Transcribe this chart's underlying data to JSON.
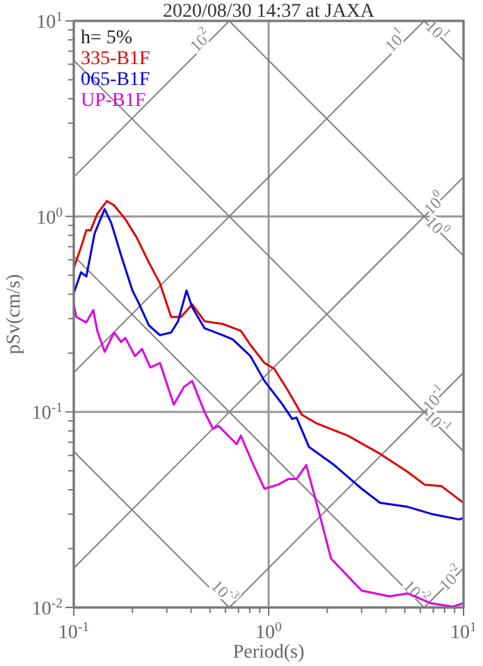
{
  "chart_data": {
    "type": "line",
    "title": "2020/08/30 14:37 at JAXA",
    "xlabel": "Period(s)",
    "ylabel": "pSv(cm/s)",
    "log": "xy",
    "grid": true,
    "legend": "top left",
    "marker": "none",
    "line_style": "solid",
    "xlim": [
      0.1,
      10
    ],
    "ylim": [
      0.01,
      10
    ],
    "xticks": [
      {
        "value": 0.1,
        "label": "10$^{-1}$"
      },
      {
        "value": 0.2,
        "label": null
      },
      {
        "value": 0.3,
        "label": null
      },
      {
        "value": 0.4,
        "label": null
      },
      {
        "value": 0.5,
        "label": null
      },
      {
        "value": 0.6,
        "label": null
      },
      {
        "value": 0.7,
        "label": null
      },
      {
        "value": 0.8,
        "label": null
      },
      {
        "value": 0.9,
        "label": null
      },
      {
        "value": 1,
        "label": "10$^{0}$"
      },
      {
        "value": 2,
        "label": null
      },
      {
        "value": 3,
        "label": null
      },
      {
        "value": 4,
        "label": null
      },
      {
        "value": 5,
        "label": null
      },
      {
        "value": 6,
        "label": null
      },
      {
        "value": 7,
        "label": null
      },
      {
        "value": 8,
        "label": null
      },
      {
        "value": 9,
        "label": null
      },
      {
        "value": 10,
        "label": "10$^{1}$"
      }
    ],
    "yticks": [
      {
        "value": 0.01,
        "label": "10$^{-2}$"
      },
      {
        "value": 0.02,
        "label": null
      },
      {
        "value": 0.03,
        "label": null
      },
      {
        "value": 0.04,
        "label": null
      },
      {
        "value": 0.05,
        "label": null
      },
      {
        "value": 0.06,
        "label": null
      },
      {
        "value": 0.07,
        "label": null
      },
      {
        "value": 0.08,
        "label": null
      },
      {
        "value": 0.09,
        "label": null
      },
      {
        "value": 0.1,
        "label": "10$^{-1}$"
      },
      {
        "value": 0.2,
        "label": null
      },
      {
        "value": 0.3,
        "label": null
      },
      {
        "value": 0.4,
        "label": null
      },
      {
        "value": 0.5,
        "label": null
      },
      {
        "value": 0.6,
        "label": null
      },
      {
        "value": 0.7,
        "label": null
      },
      {
        "value": 0.8,
        "label": null
      },
      {
        "value": 0.9,
        "label": null
      },
      {
        "value": 1,
        "label": "10$^{0}$"
      },
      {
        "value": 2,
        "label": null
      },
      {
        "value": 3,
        "label": null
      },
      {
        "value": 4,
        "label": null
      },
      {
        "value": 5,
        "label": null
      },
      {
        "value": 6,
        "label": null
      },
      {
        "value": 7,
        "label": null
      },
      {
        "value": 8,
        "label": null
      },
      {
        "value": 9,
        "label": null
      },
      {
        "value": 10,
        "label": "10$^{1}$"
      }
    ],
    "annotations": [
      "h= 5%",
      {
        "text": "10$^{2}$",
        "x": 0.454,
        "y": 7.81
      },
      {
        "text": "10$^{1}$",
        "x": 4.54,
        "y": 7.81
      },
      {
        "text": "10$^{1}$",
        "x": 7.2,
        "y": 8.73
      },
      {
        "text": "10$^{0}$",
        "x": 7.2,
        "y": 1.146
      },
      {
        "text": "10$^{0}$",
        "x": 7.2,
        "y": 0.873
      },
      {
        "text": "10$^{-1}$",
        "x": 7.2,
        "y": 0.1146
      },
      {
        "text": "10$^{-1}$",
        "x": 7.2,
        "y": 0.0873
      },
      {
        "text": "10$^{-2}$",
        "x": 8.77,
        "y": 0.0139
      },
      {
        "text": "10$^{-2}$",
        "x": 5.62,
        "y": 0.0118
      },
      {
        "text": "10$^{-3}$",
        "x": 0.581,
        "y": 0.0118
      }
    ],
    "series": [
      {
        "type": "line",
        "color": "#808080",
        "x": [
          0.1,
          0.628
        ],
        "values": [
          1.59,
          10
        ]
      },
      {
        "type": "line",
        "color": "#808080",
        "x": [
          0.1,
          6.28
        ],
        "values": [
          0.159,
          10
        ]
      },
      {
        "type": "line",
        "color": "#808080",
        "x": [
          0.1,
          10
        ],
        "values": [
          0.0159,
          1.59
        ]
      },
      {
        "type": "line",
        "color": "#808080",
        "x": [
          0.628,
          10
        ],
        "values": [
          0.01,
          0.159
        ]
      },
      {
        "type": "line",
        "color": "#808080",
        "x": [
          6.28,
          10
        ],
        "values": [
          0.01,
          0.0159
        ]
      },
      {
        "type": "line",
        "color": "#808080",
        "x": [
          6.28,
          10
        ],
        "values": [
          10,
          6.28
        ]
      },
      {
        "type": "line",
        "color": "#808080",
        "x": [
          0.628,
          10
        ],
        "values": [
          10,
          0.628
        ]
      },
      {
        "type": "line",
        "color": "#808080",
        "x": [
          0.1,
          10
        ],
        "values": [
          6.28,
          0.0628
        ]
      },
      {
        "type": "line",
        "color": "#808080",
        "x": [
          0.1,
          6.28
        ],
        "values": [
          0.628,
          0.01
        ]
      },
      {
        "type": "line",
        "color": "#808080",
        "x": [
          0.1,
          0.628
        ],
        "values": [
          0.0628,
          0.01
        ]
      },
      {
        "name": "335-B1F",
        "color": "#e00000",
        "x": [
          0.1,
          0.109,
          0.116,
          0.122,
          0.132,
          0.148,
          0.161,
          0.184,
          0.21,
          0.243,
          0.277,
          0.316,
          0.355,
          0.405,
          0.469,
          0.581,
          0.72,
          0.807,
          0.952,
          1.07,
          1.26,
          1.48,
          1.75,
          2.55,
          3.73,
          5.18,
          6.31,
          7.69,
          10
        ],
        "values": [
          0.544,
          0.697,
          0.849,
          0.849,
          1.03,
          1.2,
          1.14,
          0.968,
          0.782,
          0.581,
          0.454,
          0.306,
          0.306,
          0.355,
          0.291,
          0.282,
          0.26,
          0.22,
          0.178,
          0.166,
          0.128,
          0.0968,
          0.0877,
          0.0756,
          0.0611,
          0.0493,
          0.0425,
          0.0418,
          0.0343
        ]
      },
      {
        "name": "065-B1F",
        "color": "#0000e0",
        "x": [
          0.1,
          0.109,
          0.116,
          0.128,
          0.144,
          0.156,
          0.175,
          0.2,
          0.217,
          0.243,
          0.277,
          0.316,
          0.343,
          0.379,
          0.405,
          0.469,
          0.581,
          0.654,
          0.807,
          0.952,
          1.18,
          1.32,
          1.39,
          1.61,
          2.17,
          3.0,
          3.73,
          5.18,
          6.84,
          9.5,
          10
        ],
        "values": [
          0.405,
          0.518,
          0.493,
          0.821,
          1.09,
          0.921,
          0.631,
          0.418,
          0.355,
          0.277,
          0.247,
          0.255,
          0.291,
          0.418,
          0.343,
          0.268,
          0.247,
          0.235,
          0.193,
          0.144,
          0.109,
          0.0921,
          0.0936,
          0.0663,
          0.0535,
          0.0405,
          0.0343,
          0.0327,
          0.0301,
          0.0282,
          0.0287
        ]
      },
      {
        "name": "UP-B1F",
        "color": "#e000e0",
        "x": [
          0.1,
          0.103,
          0.116,
          0.126,
          0.132,
          0.144,
          0.161,
          0.175,
          0.184,
          0.206,
          0.224,
          0.247,
          0.277,
          0.326,
          0.367,
          0.405,
          0.469,
          0.518,
          0.553,
          0.685,
          0.72,
          0.836,
          0.952,
          1.12,
          1.26,
          1.39,
          1.56,
          1.84,
          2.09,
          3.0,
          4.17,
          5.18,
          6.84,
          8.8,
          10
        ],
        "values": [
          0.355,
          0.306,
          0.287,
          0.332,
          0.26,
          0.203,
          0.255,
          0.228,
          0.239,
          0.193,
          0.21,
          0.169,
          0.178,
          0.109,
          0.134,
          0.144,
          0.1,
          0.082,
          0.0848,
          0.0685,
          0.0756,
          0.0535,
          0.0405,
          0.0425,
          0.0454,
          0.0454,
          0.0535,
          0.0291,
          0.0178,
          0.0122,
          0.0114,
          0.0118,
          0.0105,
          0.0101,
          0.0105
        ]
      }
    ]
  }
}
